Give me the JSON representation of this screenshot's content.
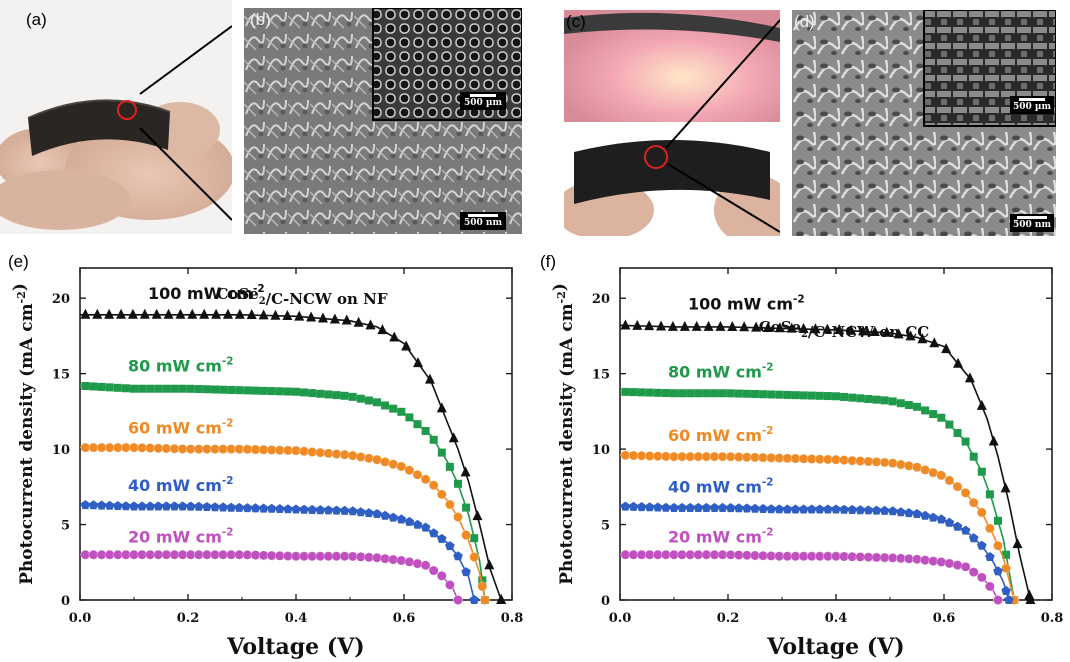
{
  "panels": {
    "a": {
      "label": "(a)"
    },
    "b": {
      "label": "(b)",
      "inset_scale": "500 µm",
      "scale": "500 nm"
    },
    "c": {
      "label": "(c)"
    },
    "d": {
      "label": "(d)",
      "inset_scale": "500 µm",
      "scale": "500 nm"
    },
    "e": {
      "label": "(e)"
    },
    "f": {
      "label": "(f)"
    }
  },
  "colors": {
    "100": "#111111",
    "80": "#1f9a4b",
    "60": "#f08a24",
    "40": "#2f5fc4",
    "20": "#c04fbf"
  },
  "chart_data": [
    {
      "type": "line",
      "panel": "e",
      "title": "CoSe2/C-NCW on NF",
      "xlabel": "Voltage (V)",
      "ylabel": "Photocurrent density (mA cm-2)",
      "xlim": [
        0,
        0.8
      ],
      "ylim": [
        0,
        22
      ],
      "xticks": [
        "0.0",
        "0.2",
        "0.4",
        "0.6",
        "0.8"
      ],
      "yticks": [
        "0",
        "5",
        "10",
        "15",
        "20"
      ],
      "series": [
        {
          "name": "100 mW cm-2",
          "marker": "triangle",
          "x": [
            0,
            0.1,
            0.2,
            0.3,
            0.4,
            0.5,
            0.55,
            0.6,
            0.65,
            0.7,
            0.72,
            0.74,
            0.76,
            0.78
          ],
          "y": [
            18.9,
            18.9,
            18.9,
            18.9,
            18.8,
            18.5,
            18.1,
            17.0,
            14.5,
            10.0,
            7.8,
            5.0,
            2.0,
            0
          ]
        },
        {
          "name": "80 mW cm-2",
          "marker": "square",
          "x": [
            0,
            0.1,
            0.2,
            0.3,
            0.4,
            0.5,
            0.55,
            0.6,
            0.65,
            0.68,
            0.7,
            0.72,
            0.74,
            0.75
          ],
          "y": [
            14.2,
            14.0,
            14.0,
            13.9,
            13.8,
            13.5,
            13.1,
            12.4,
            10.9,
            9.2,
            7.7,
            5.6,
            2.6,
            0
          ]
        },
        {
          "name": "60 mW cm-2",
          "marker": "circle",
          "x": [
            0,
            0.1,
            0.2,
            0.3,
            0.4,
            0.5,
            0.55,
            0.6,
            0.65,
            0.68,
            0.7,
            0.72,
            0.74,
            0.75
          ],
          "y": [
            10.1,
            10.1,
            10.0,
            10.0,
            9.9,
            9.6,
            9.3,
            8.8,
            7.8,
            6.6,
            5.5,
            3.9,
            1.8,
            0
          ]
        },
        {
          "name": "40 mW cm-2",
          "marker": "pentagon",
          "x": [
            0,
            0.1,
            0.2,
            0.3,
            0.4,
            0.5,
            0.55,
            0.6,
            0.64,
            0.68,
            0.7,
            0.72,
            0.73
          ],
          "y": [
            6.3,
            6.2,
            6.2,
            6.1,
            6.0,
            5.9,
            5.7,
            5.3,
            4.8,
            3.8,
            2.9,
            1.5,
            0
          ]
        },
        {
          "name": "20 mW cm-2",
          "marker": "circle",
          "x": [
            0,
            0.1,
            0.2,
            0.3,
            0.4,
            0.5,
            0.55,
            0.6,
            0.64,
            0.67,
            0.69,
            0.7
          ],
          "y": [
            3.0,
            3.0,
            3.0,
            3.0,
            2.9,
            2.9,
            2.8,
            2.6,
            2.3,
            1.6,
            0.8,
            0
          ]
        }
      ]
    },
    {
      "type": "line",
      "panel": "f",
      "title": "CoSe2/C-NCW on CC",
      "xlabel": "Voltage (V)",
      "ylabel": "Photocurrent density (mA cm-2)",
      "xlim": [
        0,
        0.8
      ],
      "ylim": [
        0,
        22
      ],
      "xticks": [
        "0.0",
        "0.2",
        "0.4",
        "0.6",
        "0.8"
      ],
      "yticks": [
        "0",
        "5",
        "10",
        "15",
        "20"
      ],
      "series": [
        {
          "name": "100 mW cm-2",
          "marker": "triangle",
          "x": [
            0,
            0.1,
            0.2,
            0.3,
            0.4,
            0.5,
            0.55,
            0.6,
            0.65,
            0.68,
            0.7,
            0.72,
            0.74,
            0.76
          ],
          "y": [
            18.2,
            18.1,
            18.1,
            18.0,
            17.9,
            17.7,
            17.4,
            16.8,
            14.6,
            12.0,
            9.5,
            6.5,
            3.0,
            0
          ]
        },
        {
          "name": "80 mW cm-2",
          "marker": "square",
          "x": [
            0,
            0.1,
            0.2,
            0.3,
            0.4,
            0.5,
            0.55,
            0.6,
            0.64,
            0.67,
            0.69,
            0.71,
            0.72,
            0.73
          ],
          "y": [
            13.8,
            13.7,
            13.7,
            13.6,
            13.5,
            13.2,
            12.8,
            12.0,
            10.5,
            8.5,
            6.5,
            4.0,
            2.0,
            0
          ]
        },
        {
          "name": "60 mW cm-2",
          "marker": "circle",
          "x": [
            0,
            0.1,
            0.2,
            0.3,
            0.4,
            0.5,
            0.55,
            0.6,
            0.64,
            0.67,
            0.69,
            0.71,
            0.72,
            0.73
          ],
          "y": [
            9.6,
            9.5,
            9.5,
            9.4,
            9.3,
            9.1,
            8.8,
            8.2,
            7.1,
            5.8,
            4.4,
            2.8,
            1.4,
            0
          ]
        },
        {
          "name": "40 mW cm-2",
          "marker": "pentagon",
          "x": [
            0,
            0.1,
            0.2,
            0.3,
            0.4,
            0.5,
            0.55,
            0.6,
            0.64,
            0.67,
            0.69,
            0.71,
            0.72
          ],
          "y": [
            6.2,
            6.1,
            6.1,
            6.0,
            6.0,
            5.9,
            5.7,
            5.3,
            4.6,
            3.6,
            2.6,
            1.2,
            0
          ]
        },
        {
          "name": "20 mW cm-2",
          "marker": "circle",
          "x": [
            0,
            0.1,
            0.2,
            0.3,
            0.4,
            0.5,
            0.55,
            0.6,
            0.64,
            0.67,
            0.69,
            0.7
          ],
          "y": [
            3.0,
            3.0,
            3.0,
            2.9,
            2.9,
            2.8,
            2.7,
            2.5,
            2.2,
            1.5,
            0.7,
            0
          ]
        }
      ]
    }
  ]
}
